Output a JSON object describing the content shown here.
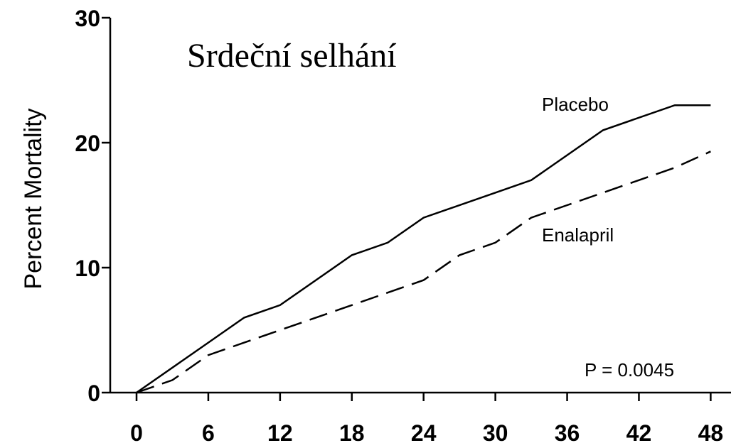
{
  "chart_data": {
    "type": "line",
    "title": "Srdeční selhání",
    "y_label": "Percent Mortality",
    "annotation": "P = 0.0045",
    "xlim": [
      -2.2,
      49.7
    ],
    "ylim": [
      0,
      30
    ],
    "xticks": [
      0,
      6,
      12,
      18,
      24,
      30,
      36,
      42,
      48
    ],
    "yticks": [
      0,
      10,
      20,
      30
    ],
    "series": [
      {
        "name": "Placebo",
        "color": "#000000",
        "dash": false,
        "x": [
          0,
          6,
          9,
          12,
          18,
          21,
          24,
          30,
          33,
          39,
          45,
          48
        ],
        "values": [
          0,
          4,
          6,
          7,
          11,
          12,
          14,
          16,
          17,
          21,
          23,
          23
        ]
      },
      {
        "name": "Enalapril",
        "color": "#000000",
        "dash": true,
        "x": [
          0,
          3,
          6,
          9,
          12,
          18,
          21,
          24,
          27,
          30,
          33,
          36,
          39,
          45,
          48
        ],
        "values": [
          0,
          1,
          3,
          4,
          5,
          7,
          8,
          9,
          11,
          12,
          14,
          15,
          16,
          18,
          19.3
        ]
      }
    ]
  }
}
